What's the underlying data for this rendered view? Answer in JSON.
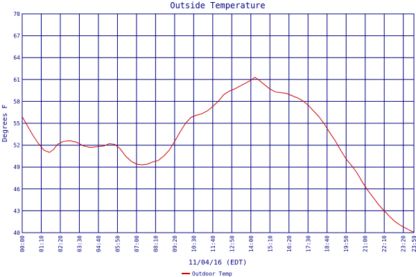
{
  "chart_data": {
    "type": "line",
    "title": "Outside Temperature",
    "xlabel": "11/04/16 (EDT)",
    "ylabel": "Degrees F",
    "ylim": [
      40,
      70
    ],
    "yticks": [
      40,
      43,
      46,
      49,
      52,
      55,
      58,
      61,
      64,
      67,
      70
    ],
    "xlim": [
      0,
      1439
    ],
    "grid": true,
    "legend_position": "bottom-left",
    "colors": {
      "axis": "#000080",
      "grid": "#000080",
      "series": "#cc0000",
      "text": "#000080"
    },
    "x_tick_labels": [
      {
        "t": 0,
        "label": "00:00"
      },
      {
        "t": 70,
        "label": "01:10"
      },
      {
        "t": 140,
        "label": "02:20"
      },
      {
        "t": 210,
        "label": "03:30"
      },
      {
        "t": 280,
        "label": "04:40"
      },
      {
        "t": 350,
        "label": "05:50"
      },
      {
        "t": 420,
        "label": "07:00"
      },
      {
        "t": 490,
        "label": "08:10"
      },
      {
        "t": 560,
        "label": "09:20"
      },
      {
        "t": 630,
        "label": "10:30"
      },
      {
        "t": 700,
        "label": "11:40"
      },
      {
        "t": 770,
        "label": "12:50"
      },
      {
        "t": 840,
        "label": "14:00"
      },
      {
        "t": 910,
        "label": "15:10"
      },
      {
        "t": 980,
        "label": "16:20"
      },
      {
        "t": 1050,
        "label": "17:30"
      },
      {
        "t": 1120,
        "label": "18:40"
      },
      {
        "t": 1190,
        "label": "19:50"
      },
      {
        "t": 1260,
        "label": "21:00"
      },
      {
        "t": 1330,
        "label": "22:10"
      },
      {
        "t": 1400,
        "label": "23:20"
      },
      {
        "t": 1439,
        "label": "23:59"
      }
    ],
    "series": [
      {
        "name": "Outdoor Temp",
        "points": [
          [
            0,
            55.9
          ],
          [
            20,
            54.6
          ],
          [
            40,
            53.3
          ],
          [
            60,
            52.2
          ],
          [
            80,
            51.3
          ],
          [
            100,
            51.0
          ],
          [
            115,
            51.4
          ],
          [
            130,
            52.1
          ],
          [
            150,
            52.5
          ],
          [
            175,
            52.6
          ],
          [
            200,
            52.4
          ],
          [
            225,
            51.9
          ],
          [
            250,
            51.7
          ],
          [
            275,
            51.8
          ],
          [
            300,
            51.9
          ],
          [
            320,
            52.2
          ],
          [
            340,
            52.1
          ],
          [
            360,
            51.5
          ],
          [
            380,
            50.5
          ],
          [
            400,
            49.8
          ],
          [
            420,
            49.4
          ],
          [
            440,
            49.3
          ],
          [
            460,
            49.4
          ],
          [
            480,
            49.7
          ],
          [
            500,
            49.9
          ],
          [
            520,
            50.5
          ],
          [
            540,
            51.3
          ],
          [
            560,
            52.5
          ],
          [
            580,
            53.8
          ],
          [
            600,
            55.0
          ],
          [
            620,
            55.8
          ],
          [
            640,
            56.1
          ],
          [
            660,
            56.3
          ],
          [
            680,
            56.7
          ],
          [
            700,
            57.3
          ],
          [
            720,
            58.0
          ],
          [
            740,
            58.9
          ],
          [
            760,
            59.4
          ],
          [
            780,
            59.7
          ],
          [
            800,
            60.1
          ],
          [
            820,
            60.5
          ],
          [
            840,
            60.9
          ],
          [
            855,
            61.3
          ],
          [
            870,
            60.9
          ],
          [
            890,
            60.3
          ],
          [
            910,
            59.7
          ],
          [
            930,
            59.3
          ],
          [
            950,
            59.2
          ],
          [
            970,
            59.1
          ],
          [
            990,
            58.8
          ],
          [
            1010,
            58.5
          ],
          [
            1030,
            58.1
          ],
          [
            1050,
            57.5
          ],
          [
            1070,
            56.7
          ],
          [
            1090,
            55.9
          ],
          [
            1110,
            54.9
          ],
          [
            1130,
            53.7
          ],
          [
            1150,
            52.6
          ],
          [
            1170,
            51.3
          ],
          [
            1190,
            50.1
          ],
          [
            1210,
            49.2
          ],
          [
            1230,
            48.2
          ],
          [
            1250,
            46.9
          ],
          [
            1270,
            45.8
          ],
          [
            1290,
            44.8
          ],
          [
            1310,
            43.8
          ],
          [
            1330,
            43.0
          ],
          [
            1350,
            42.2
          ],
          [
            1370,
            41.5
          ],
          [
            1390,
            41.0
          ],
          [
            1410,
            40.6
          ],
          [
            1430,
            40.2
          ],
          [
            1439,
            40.1
          ]
        ]
      }
    ]
  }
}
